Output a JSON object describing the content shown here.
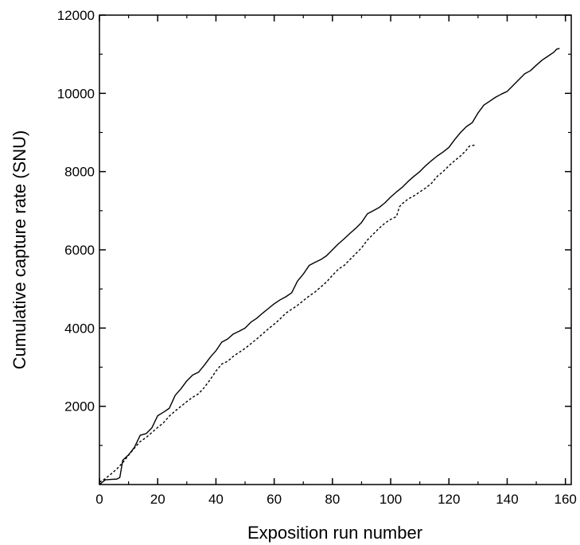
{
  "chart_data": {
    "type": "line",
    "title": "",
    "xlabel": "Exposition run number",
    "ylabel": "Cumulative capture rate (SNU)",
    "xlim": [
      0,
      162
    ],
    "ylim": [
      0,
      12000
    ],
    "x_ticks": [
      0,
      20,
      40,
      60,
      80,
      100,
      120,
      140,
      160
    ],
    "y_ticks": [
      2000,
      4000,
      6000,
      8000,
      10000,
      12000
    ],
    "x_tick_labels": [
      "0",
      "20",
      "40",
      "60",
      "80",
      "100",
      "120",
      "140",
      "160"
    ],
    "y_tick_labels": [
      "2000",
      "4000",
      "6000",
      "8000",
      "10000",
      "12000"
    ],
    "grid": false,
    "legend": "none",
    "series": [
      {
        "style": "solid",
        "color": "#000000",
        "points": [
          [
            0,
            0
          ],
          [
            1,
            60
          ],
          [
            2,
            120
          ],
          [
            4,
            130
          ],
          [
            6,
            140
          ],
          [
            7,
            180
          ],
          [
            8,
            620
          ],
          [
            10,
            760
          ],
          [
            12,
            950
          ],
          [
            14,
            1260
          ],
          [
            16,
            1300
          ],
          [
            18,
            1450
          ],
          [
            20,
            1760
          ],
          [
            22,
            1850
          ],
          [
            24,
            1950
          ],
          [
            26,
            2280
          ],
          [
            28,
            2450
          ],
          [
            30,
            2650
          ],
          [
            32,
            2800
          ],
          [
            34,
            2870
          ],
          [
            36,
            3050
          ],
          [
            38,
            3250
          ],
          [
            40,
            3420
          ],
          [
            42,
            3640
          ],
          [
            44,
            3720
          ],
          [
            46,
            3850
          ],
          [
            48,
            3920
          ],
          [
            50,
            4000
          ],
          [
            52,
            4150
          ],
          [
            54,
            4250
          ],
          [
            56,
            4380
          ],
          [
            58,
            4500
          ],
          [
            60,
            4620
          ],
          [
            62,
            4720
          ],
          [
            64,
            4800
          ],
          [
            66,
            4900
          ],
          [
            68,
            5200
          ],
          [
            70,
            5380
          ],
          [
            72,
            5600
          ],
          [
            74,
            5680
          ],
          [
            76,
            5750
          ],
          [
            78,
            5850
          ],
          [
            80,
            6000
          ],
          [
            82,
            6150
          ],
          [
            84,
            6280
          ],
          [
            86,
            6420
          ],
          [
            88,
            6550
          ],
          [
            90,
            6700
          ],
          [
            92,
            6920
          ],
          [
            94,
            7000
          ],
          [
            96,
            7080
          ],
          [
            98,
            7200
          ],
          [
            100,
            7350
          ],
          [
            102,
            7480
          ],
          [
            104,
            7600
          ],
          [
            106,
            7750
          ],
          [
            108,
            7880
          ],
          [
            110,
            8000
          ],
          [
            112,
            8150
          ],
          [
            114,
            8280
          ],
          [
            116,
            8400
          ],
          [
            118,
            8500
          ],
          [
            120,
            8620
          ],
          [
            122,
            8820
          ],
          [
            124,
            9000
          ],
          [
            126,
            9150
          ],
          [
            128,
            9250
          ],
          [
            130,
            9500
          ],
          [
            132,
            9700
          ],
          [
            134,
            9800
          ],
          [
            136,
            9900
          ],
          [
            138,
            9980
          ],
          [
            140,
            10050
          ],
          [
            142,
            10200
          ],
          [
            144,
            10350
          ],
          [
            146,
            10500
          ],
          [
            148,
            10580
          ],
          [
            150,
            10720
          ],
          [
            152,
            10850
          ],
          [
            154,
            10950
          ],
          [
            156,
            11050
          ],
          [
            157,
            11130
          ],
          [
            158,
            11150
          ]
        ]
      },
      {
        "style": "dotted",
        "color": "#000000",
        "points": [
          [
            0,
            60
          ],
          [
            2,
            150
          ],
          [
            4,
            270
          ],
          [
            6,
            400
          ],
          [
            8,
            560
          ],
          [
            10,
            750
          ],
          [
            12,
            930
          ],
          [
            14,
            1100
          ],
          [
            16,
            1200
          ],
          [
            18,
            1330
          ],
          [
            20,
            1460
          ],
          [
            22,
            1580
          ],
          [
            24,
            1750
          ],
          [
            26,
            1880
          ],
          [
            28,
            2000
          ],
          [
            30,
            2120
          ],
          [
            32,
            2230
          ],
          [
            34,
            2320
          ],
          [
            36,
            2480
          ],
          [
            38,
            2680
          ],
          [
            40,
            2900
          ],
          [
            42,
            3080
          ],
          [
            44,
            3150
          ],
          [
            46,
            3280
          ],
          [
            48,
            3380
          ],
          [
            50,
            3480
          ],
          [
            52,
            3600
          ],
          [
            54,
            3720
          ],
          [
            56,
            3850
          ],
          [
            58,
            3980
          ],
          [
            60,
            4100
          ],
          [
            62,
            4230
          ],
          [
            64,
            4380
          ],
          [
            66,
            4480
          ],
          [
            68,
            4580
          ],
          [
            70,
            4700
          ],
          [
            72,
            4820
          ],
          [
            74,
            4920
          ],
          [
            76,
            5050
          ],
          [
            78,
            5180
          ],
          [
            80,
            5350
          ],
          [
            82,
            5500
          ],
          [
            84,
            5600
          ],
          [
            86,
            5750
          ],
          [
            88,
            5900
          ],
          [
            90,
            6050
          ],
          [
            92,
            6250
          ],
          [
            94,
            6400
          ],
          [
            96,
            6550
          ],
          [
            98,
            6680
          ],
          [
            100,
            6780
          ],
          [
            102,
            6850
          ],
          [
            103,
            7100
          ],
          [
            104,
            7180
          ],
          [
            106,
            7300
          ],
          [
            108,
            7380
          ],
          [
            110,
            7480
          ],
          [
            112,
            7580
          ],
          [
            114,
            7700
          ],
          [
            116,
            7880
          ],
          [
            118,
            8000
          ],
          [
            120,
            8150
          ],
          [
            122,
            8280
          ],
          [
            124,
            8400
          ],
          [
            126,
            8550
          ],
          [
            127,
            8650
          ],
          [
            129,
            8680
          ]
        ]
      }
    ]
  }
}
